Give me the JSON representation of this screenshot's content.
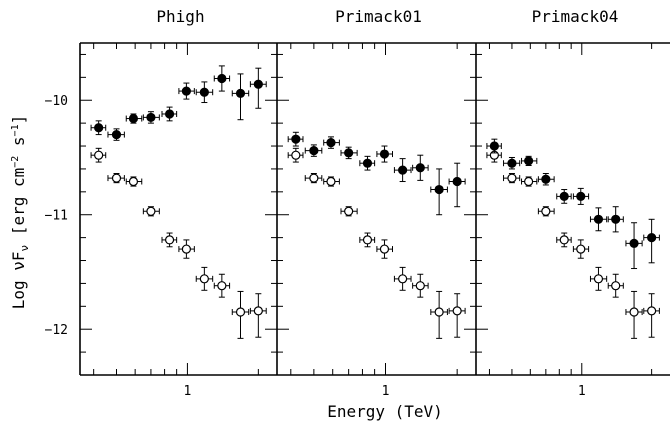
{
  "chart_data": [
    {
      "type": "scatter",
      "title": "Phigh",
      "xlabel": "Energy (TeV)",
      "ylabel": "Log νF",
      "ylabel_sub": "ν",
      "ylabel_units": "[erg cm",
      "ylabel_sup1": "−2",
      "ylabel_mid": " s",
      "ylabel_sup2": "−1",
      "ylabel_end": "]",
      "x_log": true,
      "xlim": [
        0.35,
        2.4
      ],
      "ylim": [
        -12.4,
        -9.5
      ],
      "xticks_labeled": [
        {
          "v": 1,
          "label": "1"
        }
      ],
      "yticks_labeled": [
        {
          "v": -10,
          "label": "−10"
        },
        {
          "v": -11,
          "label": "−11"
        },
        {
          "v": -12,
          "label": "−12"
        }
      ],
      "series": [
        {
          "marker": "open-circle",
          "points": [
            {
              "x": 0.42,
              "y": -10.48,
              "xlo": 0.39,
              "xhi": 0.45,
              "ylo": -10.54,
              "yhi": -10.42
            },
            {
              "x": 0.5,
              "y": -10.68,
              "xlo": 0.46,
              "xhi": 0.54,
              "ylo": -10.72,
              "yhi": -10.64
            },
            {
              "x": 0.59,
              "y": -10.71,
              "xlo": 0.55,
              "xhi": 0.64,
              "ylo": -10.75,
              "yhi": -10.67
            },
            {
              "x": 0.7,
              "y": -10.97,
              "xlo": 0.65,
              "xhi": 0.76,
              "ylo": -11.01,
              "yhi": -10.93
            },
            {
              "x": 0.84,
              "y": -11.22,
              "xlo": 0.78,
              "xhi": 0.9,
              "ylo": -11.28,
              "yhi": -11.16
            },
            {
              "x": 0.99,
              "y": -11.3,
              "xlo": 0.92,
              "xhi": 1.07,
              "ylo": -11.38,
              "yhi": -11.22
            },
            {
              "x": 1.18,
              "y": -11.56,
              "xlo": 1.09,
              "xhi": 1.28,
              "ylo": -11.66,
              "yhi": -11.46
            },
            {
              "x": 1.4,
              "y": -11.62,
              "xlo": 1.3,
              "xhi": 1.51,
              "ylo": -11.72,
              "yhi": -11.52
            },
            {
              "x": 1.68,
              "y": -11.85,
              "xlo": 1.55,
              "xhi": 1.82,
              "ylo": -12.08,
              "yhi": -11.67
            },
            {
              "x": 2.0,
              "y": -11.84,
              "xlo": 1.85,
              "xhi": 2.16,
              "ylo": -12.07,
              "yhi": -11.69
            }
          ]
        },
        {
          "marker": "filled-circle",
          "points": [
            {
              "x": 0.42,
              "y": -10.24,
              "xlo": 0.39,
              "xhi": 0.45,
              "ylo": -10.3,
              "yhi": -10.18
            },
            {
              "x": 0.5,
              "y": -10.3,
              "xlo": 0.46,
              "xhi": 0.54,
              "ylo": -10.35,
              "yhi": -10.25
            },
            {
              "x": 0.59,
              "y": -10.16,
              "xlo": 0.55,
              "xhi": 0.64,
              "ylo": -10.2,
              "yhi": -10.12
            },
            {
              "x": 0.7,
              "y": -10.15,
              "xlo": 0.65,
              "xhi": 0.76,
              "ylo": -10.2,
              "yhi": -10.1
            },
            {
              "x": 0.84,
              "y": -10.12,
              "xlo": 0.78,
              "xhi": 0.9,
              "ylo": -10.18,
              "yhi": -10.06
            },
            {
              "x": 0.99,
              "y": -9.92,
              "xlo": 0.92,
              "xhi": 1.07,
              "ylo": -9.99,
              "yhi": -9.85
            },
            {
              "x": 1.18,
              "y": -9.93,
              "xlo": 1.09,
              "xhi": 1.28,
              "ylo": -10.02,
              "yhi": -9.84
            },
            {
              "x": 1.4,
              "y": -9.81,
              "xlo": 1.3,
              "xhi": 1.51,
              "ylo": -9.92,
              "yhi": -9.7
            },
            {
              "x": 1.68,
              "y": -9.94,
              "xlo": 1.55,
              "xhi": 1.82,
              "ylo": -10.17,
              "yhi": -9.77
            },
            {
              "x": 2.0,
              "y": -9.86,
              "xlo": 1.85,
              "xhi": 2.16,
              "ylo": -10.07,
              "yhi": -9.72
            }
          ]
        }
      ]
    },
    {
      "type": "scatter",
      "title": "Primack01",
      "x_log": true,
      "xlim": [
        0.35,
        2.4
      ],
      "ylim": [
        -12.4,
        -9.5
      ],
      "series": [
        {
          "marker": "open-circle",
          "points": [
            {
              "x": 0.42,
              "y": -10.48,
              "xlo": 0.39,
              "xhi": 0.45,
              "ylo": -10.54,
              "yhi": -10.42
            },
            {
              "x": 0.5,
              "y": -10.68,
              "xlo": 0.46,
              "xhi": 0.54,
              "ylo": -10.72,
              "yhi": -10.64
            },
            {
              "x": 0.59,
              "y": -10.71,
              "xlo": 0.55,
              "xhi": 0.64,
              "ylo": -10.75,
              "yhi": -10.67
            },
            {
              "x": 0.7,
              "y": -10.97,
              "xlo": 0.65,
              "xhi": 0.76,
              "ylo": -11.01,
              "yhi": -10.93
            },
            {
              "x": 0.84,
              "y": -11.22,
              "xlo": 0.78,
              "xhi": 0.9,
              "ylo": -11.28,
              "yhi": -11.16
            },
            {
              "x": 0.99,
              "y": -11.3,
              "xlo": 0.92,
              "xhi": 1.07,
              "ylo": -11.38,
              "yhi": -11.22
            },
            {
              "x": 1.18,
              "y": -11.56,
              "xlo": 1.09,
              "xhi": 1.28,
              "ylo": -11.66,
              "yhi": -11.46
            },
            {
              "x": 1.4,
              "y": -11.62,
              "xlo": 1.3,
              "xhi": 1.51,
              "ylo": -11.72,
              "yhi": -11.52
            },
            {
              "x": 1.68,
              "y": -11.85,
              "xlo": 1.55,
              "xhi": 1.82,
              "ylo": -12.08,
              "yhi": -11.67
            },
            {
              "x": 2.0,
              "y": -11.84,
              "xlo": 1.85,
              "xhi": 2.16,
              "ylo": -12.07,
              "yhi": -11.69
            }
          ]
        },
        {
          "marker": "filled-circle",
          "points": [
            {
              "x": 0.42,
              "y": -10.34,
              "xlo": 0.39,
              "xhi": 0.45,
              "ylo": -10.4,
              "yhi": -10.28
            },
            {
              "x": 0.5,
              "y": -10.44,
              "xlo": 0.46,
              "xhi": 0.54,
              "ylo": -10.49,
              "yhi": -10.39
            },
            {
              "x": 0.59,
              "y": -10.37,
              "xlo": 0.55,
              "xhi": 0.64,
              "ylo": -10.42,
              "yhi": -10.32
            },
            {
              "x": 0.7,
              "y": -10.46,
              "xlo": 0.65,
              "xhi": 0.76,
              "ylo": -10.51,
              "yhi": -10.41
            },
            {
              "x": 0.84,
              "y": -10.55,
              "xlo": 0.78,
              "xhi": 0.9,
              "ylo": -10.61,
              "yhi": -10.49
            },
            {
              "x": 0.99,
              "y": -10.47,
              "xlo": 0.92,
              "xhi": 1.07,
              "ylo": -10.54,
              "yhi": -10.4
            },
            {
              "x": 1.18,
              "y": -10.61,
              "xlo": 1.09,
              "xhi": 1.28,
              "ylo": -10.71,
              "yhi": -10.51
            },
            {
              "x": 1.4,
              "y": -10.59,
              "xlo": 1.3,
              "xhi": 1.51,
              "ylo": -10.7,
              "yhi": -10.48
            },
            {
              "x": 1.68,
              "y": -10.78,
              "xlo": 1.55,
              "xhi": 1.82,
              "ylo": -11.0,
              "yhi": -10.6
            },
            {
              "x": 2.0,
              "y": -10.71,
              "xlo": 1.85,
              "xhi": 2.16,
              "ylo": -10.93,
              "yhi": -10.55
            }
          ]
        }
      ]
    },
    {
      "type": "scatter",
      "title": "Primack04",
      "x_log": true,
      "xlim": [
        0.35,
        2.4
      ],
      "ylim": [
        -12.4,
        -9.5
      ],
      "series": [
        {
          "marker": "open-circle",
          "points": [
            {
              "x": 0.42,
              "y": -10.48,
              "xlo": 0.39,
              "xhi": 0.45,
              "ylo": -10.54,
              "yhi": -10.42
            },
            {
              "x": 0.5,
              "y": -10.68,
              "xlo": 0.46,
              "xhi": 0.54,
              "ylo": -10.72,
              "yhi": -10.64
            },
            {
              "x": 0.59,
              "y": -10.71,
              "xlo": 0.55,
              "xhi": 0.64,
              "ylo": -10.75,
              "yhi": -10.67
            },
            {
              "x": 0.7,
              "y": -10.97,
              "xlo": 0.65,
              "xhi": 0.76,
              "ylo": -11.01,
              "yhi": -10.93
            },
            {
              "x": 0.84,
              "y": -11.22,
              "xlo": 0.78,
              "xhi": 0.9,
              "ylo": -11.28,
              "yhi": -11.16
            },
            {
              "x": 0.99,
              "y": -11.3,
              "xlo": 0.92,
              "xhi": 1.07,
              "ylo": -11.38,
              "yhi": -11.22
            },
            {
              "x": 1.18,
              "y": -11.56,
              "xlo": 1.09,
              "xhi": 1.28,
              "ylo": -11.66,
              "yhi": -11.46
            },
            {
              "x": 1.4,
              "y": -11.62,
              "xlo": 1.3,
              "xhi": 1.51,
              "ylo": -11.72,
              "yhi": -11.52
            },
            {
              "x": 1.68,
              "y": -11.85,
              "xlo": 1.55,
              "xhi": 1.82,
              "ylo": -12.08,
              "yhi": -11.67
            },
            {
              "x": 2.0,
              "y": -11.84,
              "xlo": 1.85,
              "xhi": 2.16,
              "ylo": -12.07,
              "yhi": -11.69
            }
          ]
        },
        {
          "marker": "filled-circle",
          "points": [
            {
              "x": 0.42,
              "y": -10.4,
              "xlo": 0.39,
              "xhi": 0.45,
              "ylo": -10.46,
              "yhi": -10.34
            },
            {
              "x": 0.5,
              "y": -10.55,
              "xlo": 0.46,
              "xhi": 0.54,
              "ylo": -10.6,
              "yhi": -10.5
            },
            {
              "x": 0.59,
              "y": -10.53,
              "xlo": 0.55,
              "xhi": 0.64,
              "ylo": -10.57,
              "yhi": -10.49
            },
            {
              "x": 0.7,
              "y": -10.69,
              "xlo": 0.65,
              "xhi": 0.76,
              "ylo": -10.74,
              "yhi": -10.64
            },
            {
              "x": 0.84,
              "y": -10.84,
              "xlo": 0.78,
              "xhi": 0.9,
              "ylo": -10.9,
              "yhi": -10.78
            },
            {
              "x": 0.99,
              "y": -10.84,
              "xlo": 0.92,
              "xhi": 1.07,
              "ylo": -10.91,
              "yhi": -10.77
            },
            {
              "x": 1.18,
              "y": -11.04,
              "xlo": 1.09,
              "xhi": 1.28,
              "ylo": -11.14,
              "yhi": -10.94
            },
            {
              "x": 1.4,
              "y": -11.04,
              "xlo": 1.3,
              "xhi": 1.51,
              "ylo": -11.15,
              "yhi": -10.93
            },
            {
              "x": 1.68,
              "y": -11.25,
              "xlo": 1.55,
              "xhi": 1.82,
              "ylo": -11.47,
              "yhi": -11.07
            },
            {
              "x": 2.0,
              "y": -11.2,
              "xlo": 1.85,
              "xhi": 2.16,
              "ylo": -11.42,
              "yhi": -11.04
            }
          ]
        }
      ]
    }
  ]
}
